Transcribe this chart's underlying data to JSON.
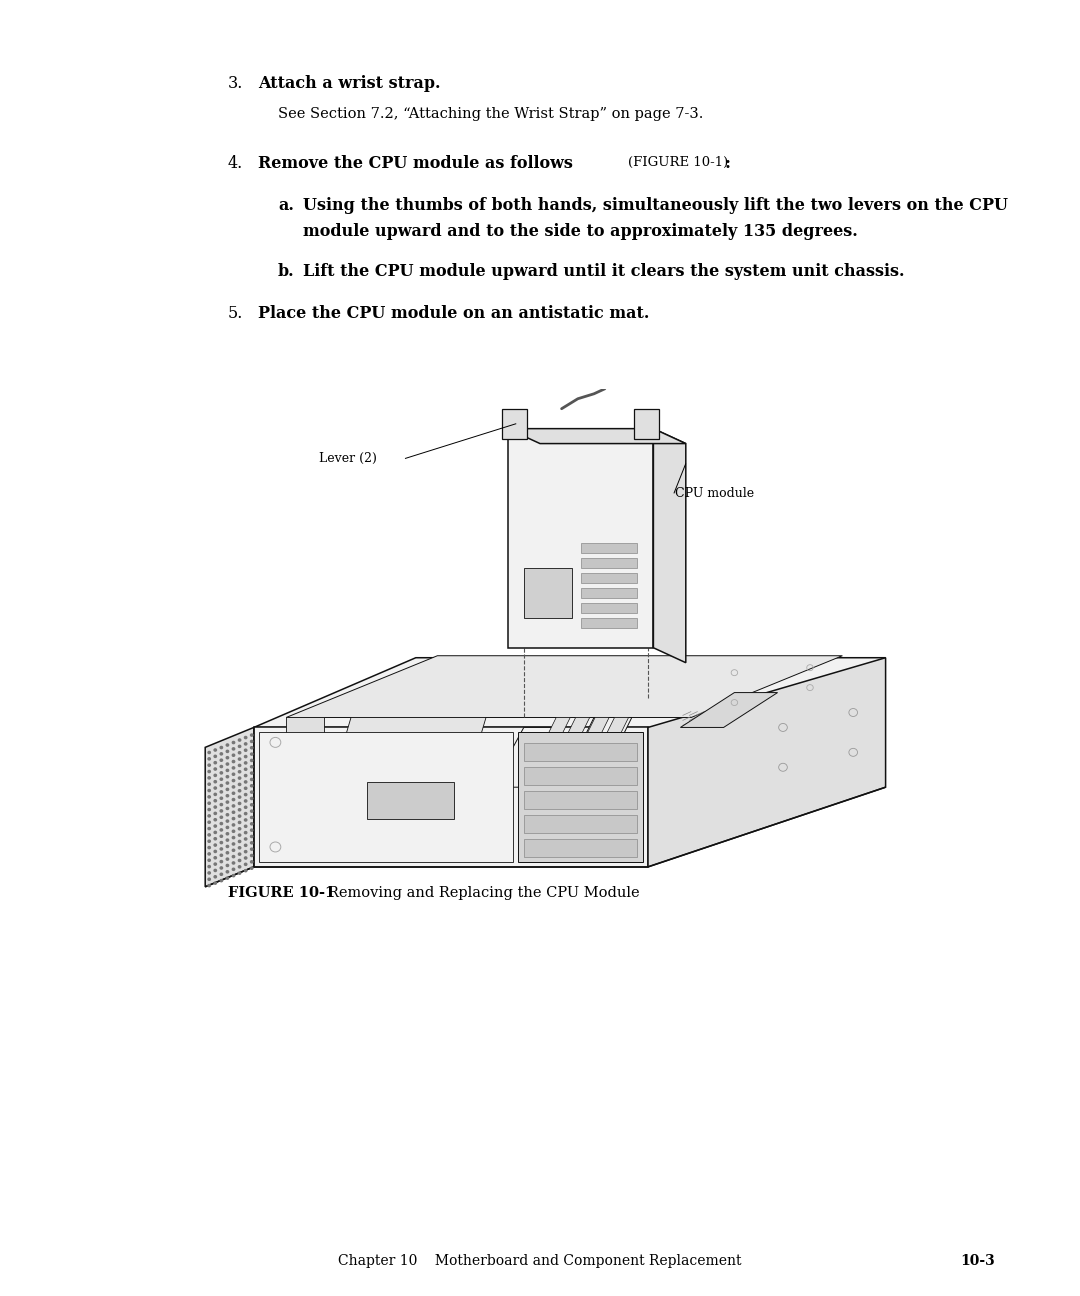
{
  "bg_color": "#ffffff",
  "text_color": "#000000",
  "page_width": 10.8,
  "page_height": 12.96,
  "step3_num": "3.",
  "step3_text": "Attach a wrist strap.",
  "step3_sub": "See Section 7.2, “Attaching the Wrist Strap” on page 7-3.",
  "step4_num": "4.",
  "step4_text": "Remove the CPU module as follows ",
  "step4_figref": "(FɪGURE 10-1)",
  "step4_colon": ":",
  "step4a_letter": "a.",
  "step4a_text": "Using the thumbs of both hands, simultaneously lift the two levers on the CPU\nmodule upward and to the side to approximately 135 degrees.",
  "step4b_letter": "b.",
  "step4b_text": "Lift the CPU module upward until it clears the system unit chassis.",
  "step5_num": "5.",
  "step5_text": "Place the CPU module on an antistatic mat.",
  "fig_caption_bold": "FIGURE 10-1",
  "fig_caption_normal": "  Removing and Replacing the CPU Module",
  "footer_text": "Chapter 10    Motherboard and Component Replacement",
  "footer_page": "10-3",
  "label_lever": "Lever (2)",
  "label_cpu": "CPU module"
}
